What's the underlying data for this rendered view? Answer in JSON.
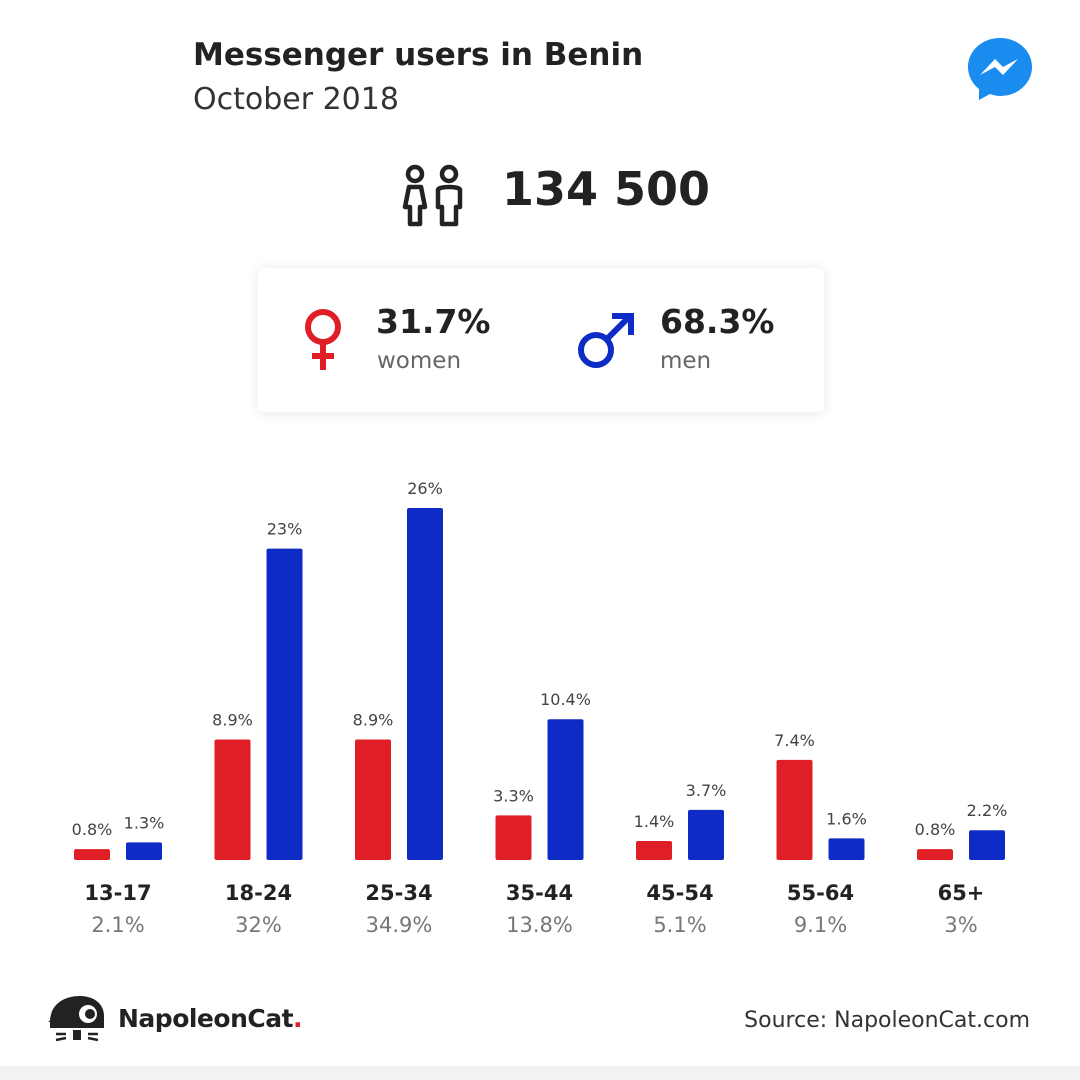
{
  "header": {
    "title": "Messenger users in Benin",
    "subtitle": "October 2018"
  },
  "flag_colors": {
    "green": "#008751",
    "yellow": "#fcd116",
    "red": "#e8112d"
  },
  "icons": {
    "app": "messenger-icon",
    "people": "people-icon",
    "female": "female-symbol-icon",
    "male": "male-symbol-icon",
    "logo": "napoleoncat-logo-icon"
  },
  "summary": {
    "total_users": "134 500",
    "women": {
      "value": "31.7%",
      "label": "women"
    },
    "men": {
      "value": "68.3%",
      "label": "men"
    }
  },
  "colors": {
    "women": "#e01e26",
    "men": "#0f2bc5",
    "messenger": "#1a8cf0"
  },
  "chart_data": {
    "type": "bar",
    "categories": [
      "13-17",
      "18-24",
      "25-34",
      "35-44",
      "45-54",
      "55-64",
      "65+"
    ],
    "category_totals": [
      "2.1%",
      "32%",
      "34.9%",
      "13.8%",
      "5.1%",
      "9.1%",
      "3%"
    ],
    "series": [
      {
        "key": "women",
        "values": [
          0.8,
          8.9,
          8.9,
          3.3,
          1.4,
          7.4,
          0.8
        ],
        "labels": [
          "0.8%",
          "8.9%",
          "8.9%",
          "3.3%",
          "1.4%",
          "7.4%",
          "0.8%"
        ]
      },
      {
        "key": "men",
        "values": [
          1.3,
          23,
          26,
          10.4,
          3.7,
          1.6,
          2.2
        ],
        "labels": [
          "1.3%",
          "23%",
          "26%",
          "10.4%",
          "3.7%",
          "1.6%",
          "2.2%"
        ]
      }
    ],
    "ylim": [
      0,
      26
    ]
  },
  "footer": {
    "brand": "NapoleonCat",
    "brand_dot": ".",
    "source": "Source: NapoleonCat.com"
  }
}
